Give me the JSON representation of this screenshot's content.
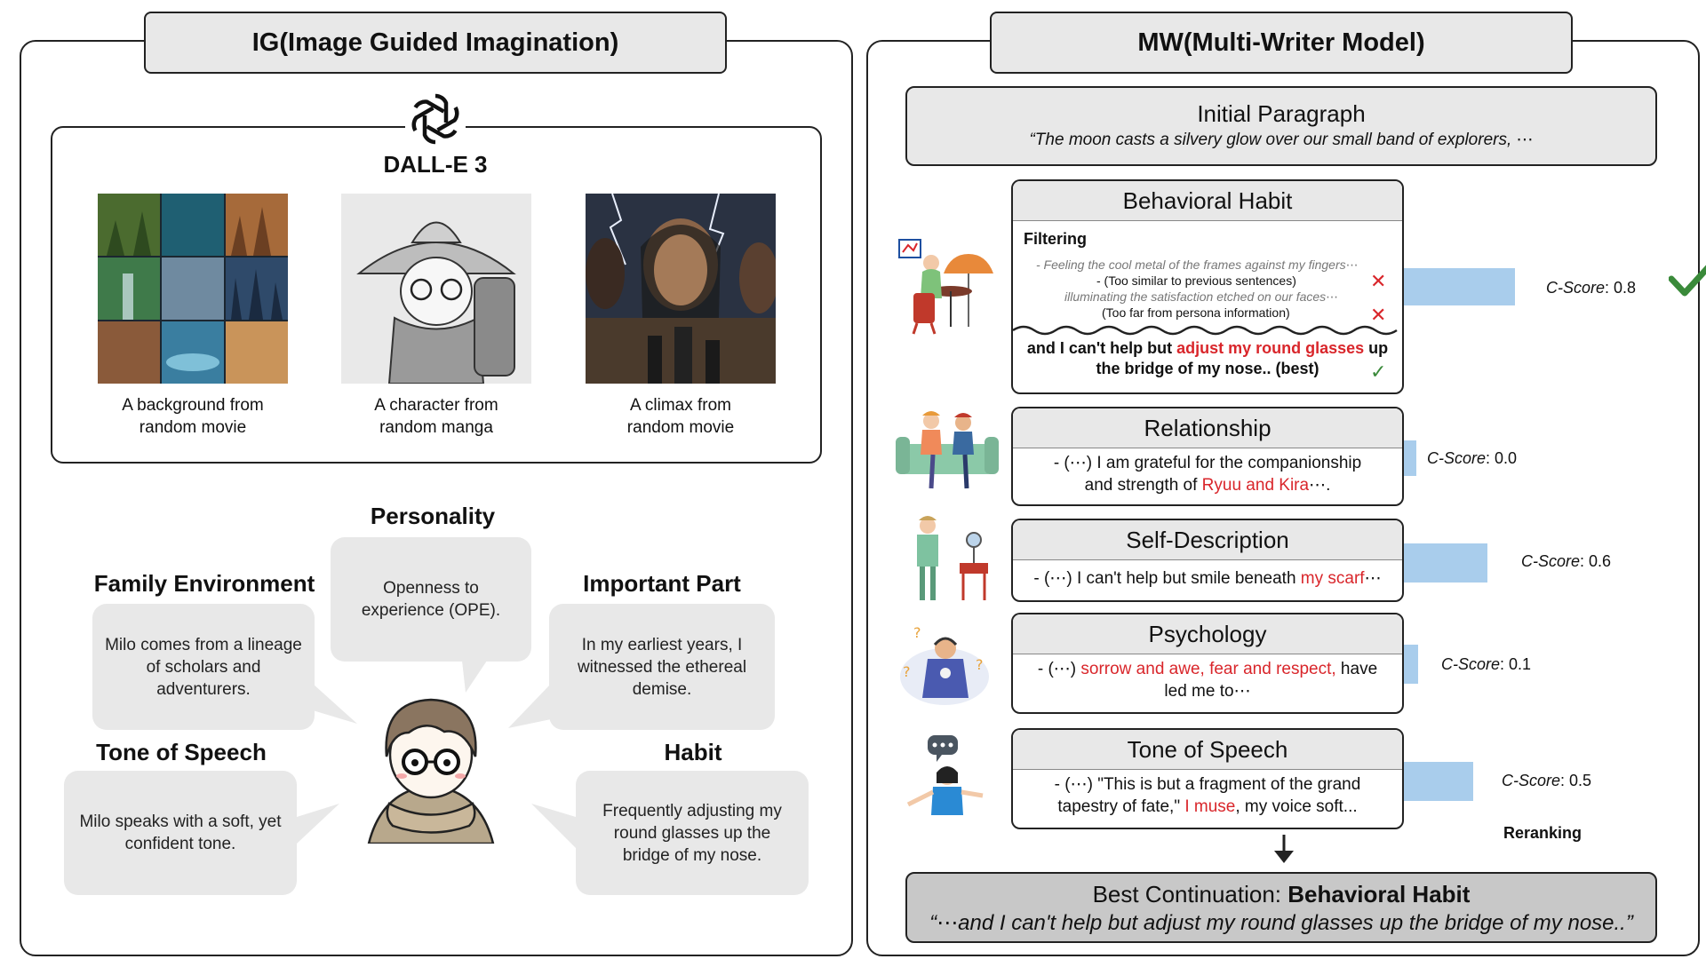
{
  "left": {
    "title": "IG(Image Guided Imagination)",
    "dalle_label": "DALL-E 3",
    "images": [
      {
        "caption_line1": "A background from",
        "caption_line2": "random movie"
      },
      {
        "caption_line1": "A character from",
        "caption_line2": "random manga"
      },
      {
        "caption_line1": "A climax from",
        "caption_line2": "random movie"
      }
    ],
    "traits": {
      "personality": {
        "title": "Personality",
        "text": "Openness to experience (OPE)."
      },
      "family": {
        "title": "Family Environment",
        "text": "Milo comes from a lineage of scholars and adventurers."
      },
      "important": {
        "title": "Important Part",
        "text": "In my earliest years, I witnessed the ethereal demise."
      },
      "tone": {
        "title": "Tone of Speech",
        "text": "Milo speaks with a soft, yet confident tone."
      },
      "habit": {
        "title": "Habit",
        "text": "Frequently adjusting my round glasses up the bridge of my nose."
      }
    }
  },
  "right": {
    "title": "MW(Multi-Writer Model)",
    "initial": {
      "title": "Initial Paragraph",
      "text": "“The moon casts a silvery glow over our small band of explorers, ⋯"
    },
    "behavioral": {
      "title": "Behavioral Habit",
      "filtering_label": "Filtering",
      "filter_line1": "-   Feeling the cool metal of the frames against my fingers⋯",
      "filter_reason1": "-   (Too similar to previous sentences)",
      "filter_line2": "illuminating the satisfaction etched on our faces⋯",
      "filter_reason2": "(Too far from persona information)",
      "best_pre": "and I can't help but ",
      "best_red": "adjust my round glasses",
      "best_post": " up",
      "best_line2": "the bridge of my nose.. (best)",
      "score": "C-Score",
      "score_value": ": 0.8"
    },
    "relationship": {
      "title": "Relationship",
      "line1": "-   (⋯) I am grateful for the companionship",
      "line2_pre": "and strength of ",
      "line2_red": "Ryuu and Kira",
      "line2_post": "⋯.",
      "score": "C-Score",
      "score_value": ": 0.0"
    },
    "self": {
      "title": "Self-Description",
      "line_pre": "-   (⋯) I can't help but smile beneath ",
      "line_red": "my scarf",
      "line_post": "⋯",
      "score": "C-Score",
      "score_value": ": 0.6"
    },
    "psychology": {
      "title": "Psychology",
      "line1_pre": "-   (⋯) ",
      "line1_red": "sorrow and awe, fear and respect,",
      "line1_post": " have",
      "line2": "led me to⋯",
      "score": "C-Score",
      "score_value": ": 0.1"
    },
    "tone": {
      "title": "Tone of Speech",
      "line1": "-   (⋯) \"This is but a fragment of the grand",
      "line2_pre": "tapestry of fate,\" ",
      "line2_red": "I muse",
      "line2_post": ", my voice soft...",
      "score": "C-Score",
      "score_value": ": 0.5"
    },
    "reranking": "Reranking",
    "best": {
      "title_pre": "Best Continuation: ",
      "title_bold": "Behavioral Habit",
      "text": "“⋯and I can't help but adjust my round glasses up the bridge of my nose..”"
    },
    "scores": [
      0.8,
      0.0,
      0.6,
      0.1,
      0.5
    ]
  }
}
